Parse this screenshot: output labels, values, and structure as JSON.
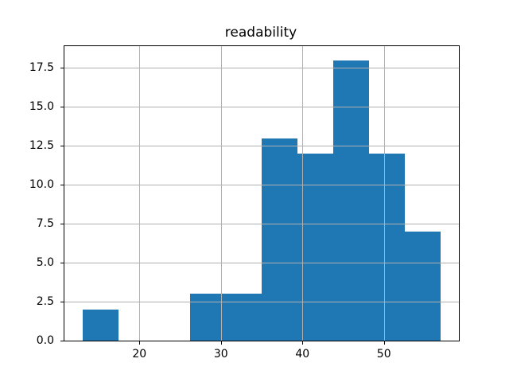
{
  "figure": {
    "background": "#ffffff"
  },
  "chart_data": {
    "type": "bar",
    "subtype": "histogram",
    "title": "readability",
    "xlabel": "",
    "ylabel": "",
    "bin_edges": [
      13.0,
      17.4,
      21.8,
      26.2,
      30.6,
      35.0,
      39.4,
      43.8,
      48.2,
      52.6,
      57.0
    ],
    "counts": [
      2,
      0,
      0,
      3,
      3,
      13,
      12,
      18,
      12,
      7
    ],
    "total_count": 70,
    "xlim": [
      10.8,
      59.2
    ],
    "ylim": [
      0,
      18.9
    ],
    "xticks": [
      {
        "value": 20,
        "label": "20"
      },
      {
        "value": 30,
        "label": "30"
      },
      {
        "value": 40,
        "label": "40"
      },
      {
        "value": 50,
        "label": "50"
      }
    ],
    "yticks": [
      {
        "value": 0.0,
        "label": "0.0"
      },
      {
        "value": 2.5,
        "label": "2.5"
      },
      {
        "value": 5.0,
        "label": "5.0"
      },
      {
        "value": 7.5,
        "label": "7.5"
      },
      {
        "value": 10.0,
        "label": "10.0"
      },
      {
        "value": 12.5,
        "label": "12.5"
      },
      {
        "value": 15.0,
        "label": "15.0"
      },
      {
        "value": 17.5,
        "label": "17.5"
      }
    ],
    "grid": true,
    "grid_over_bars": true,
    "legend": false,
    "colors": {
      "bar": "#1f77b4",
      "grid": "#b0b0b0",
      "spine": "#000000",
      "text": "#000000"
    }
  }
}
